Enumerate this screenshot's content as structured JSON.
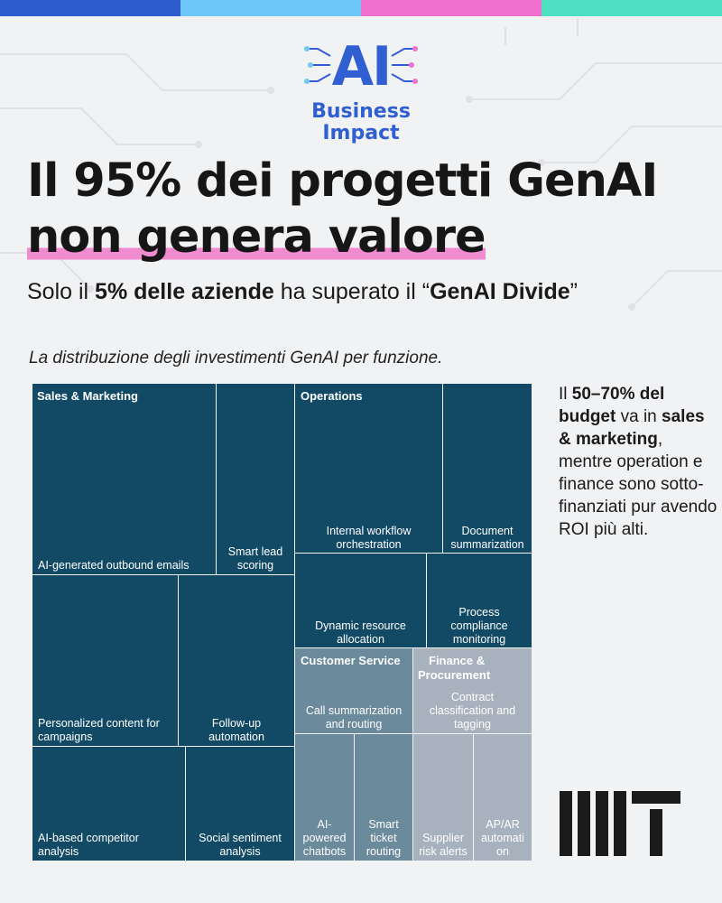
{
  "colors": {
    "topbar": [
      "#2d5ccf",
      "#6fc8fa",
      "#ef6fcf",
      "#4fe0c4"
    ],
    "dark_tile": "#124a66",
    "mid_tile": "#6b8a9c",
    "light_tile": "#a7b2be",
    "brand_blue": "#2f5fd0",
    "highlight_pink": "#f08bd0"
  },
  "logo": {
    "mark": "AI",
    "line1": "Business",
    "line2": "Impact"
  },
  "headline": {
    "line1": "Il 95% dei progetti GenAI",
    "line2": "non genera valore"
  },
  "subtitle": {
    "part1": "Solo il ",
    "bold1": "5% delle aziende",
    "part2": " ha superato il “",
    "bold2": "GenAI Divide",
    "part3": "”"
  },
  "chart_caption": "La distribuzione degli investimenti GenAI per funzione.",
  "side_note": {
    "t1": "Il ",
    "b1": "50–70% del budget",
    "t2": " va in ",
    "b2": "sales & marketing",
    "t3": ", mentre operation e finance sono sotto-finanziati pur avendo ROI più alti."
  },
  "chart_data": {
    "type": "treemap",
    "title": "La distribuzione degli investimenti GenAI per funzione.",
    "groups": [
      {
        "name": "Sales & Marketing",
        "shade": "dark",
        "items": [
          {
            "label": "AI-generated outbound emails"
          },
          {
            "label": "Smart lead scoring"
          },
          {
            "label": "Personalized content for campaigns"
          },
          {
            "label": "Follow-up automation"
          },
          {
            "label": "AI-based competitor analysis"
          },
          {
            "label": "Social sentiment analysis"
          }
        ]
      },
      {
        "name": "Operations",
        "shade": "dark",
        "items": [
          {
            "label": "Internal workflow orchestration"
          },
          {
            "label": "Document summarization"
          },
          {
            "label": "Dynamic resource allocation"
          },
          {
            "label": "Process compliance monitoring"
          }
        ]
      },
      {
        "name": "Customer Service",
        "shade": "mid",
        "items": [
          {
            "label": "Call summarization and routing"
          },
          {
            "label": "AI-powered chatbots"
          },
          {
            "label": "Smart ticket routing"
          }
        ]
      },
      {
        "name": "Finance & Procurement",
        "shade": "light",
        "items": [
          {
            "label": "Contract classification and tagging"
          },
          {
            "label": "Supplier risk alerts"
          },
          {
            "label": "AP/AR automation"
          }
        ]
      }
    ]
  }
}
